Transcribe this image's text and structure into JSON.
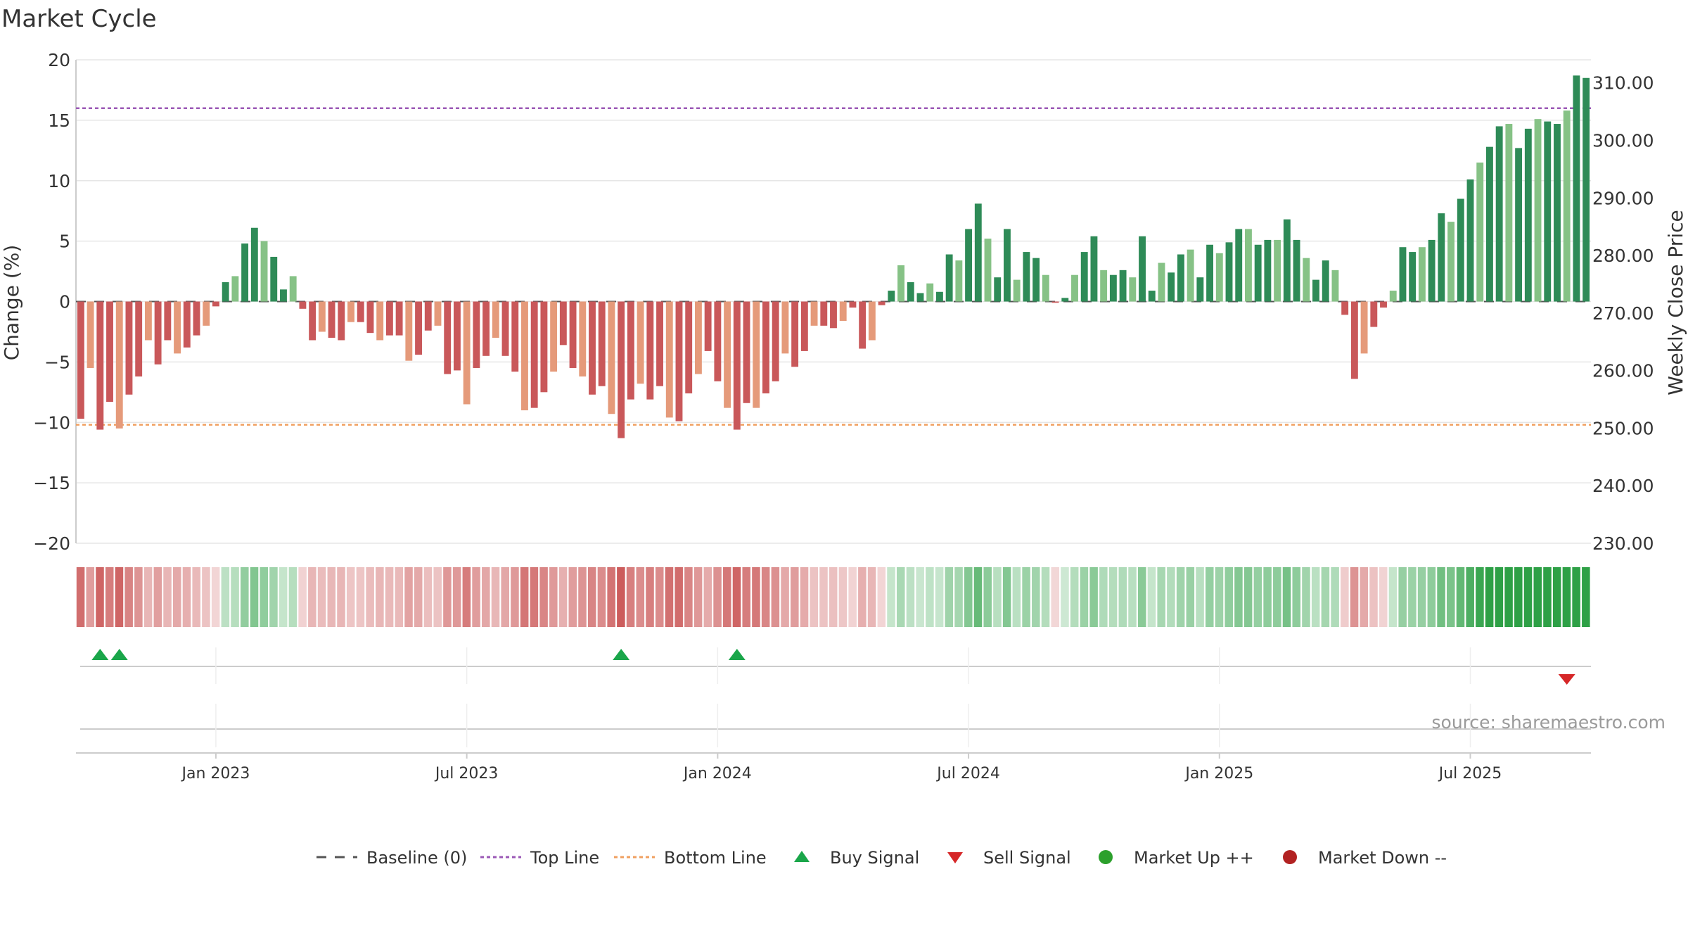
{
  "title": "Market Cycle",
  "source_text": "source: sharemaestro.com",
  "colors": {
    "up_dark": "#2e8b57",
    "up_light": "#86c286",
    "down_dark": "#c9585a",
    "down_light": "#e59a7a",
    "top_line": "#9b59b6",
    "bottom_line": "#f0a060",
    "baseline": "#555555",
    "buy": "#1aa64a",
    "sell": "#d62728",
    "market_up": "#2ca02c",
    "market_down": "#b22222"
  },
  "chart_data": {
    "type": "bar",
    "title": "Market Cycle",
    "y_left": {
      "label": "Change (%)",
      "lim": [
        -20,
        20
      ],
      "ticks": [
        "20",
        "15",
        "10",
        "5",
        "0",
        "−5",
        "−10",
        "−15",
        "−20"
      ]
    },
    "y_right": {
      "label": "Weekly Close Price",
      "lim": [
        230,
        314
      ],
      "ticks": [
        "310.00",
        "300.00",
        "290.00",
        "280.00",
        "270.00",
        "260.00",
        "250.00",
        "240.00",
        "230.00"
      ]
    },
    "x_ticks": [
      "Jan 2023",
      "Jul 2023",
      "Jan 2024",
      "Jul 2024",
      "Jan 2025",
      "Jul 2025"
    ],
    "x_tick_weeks": [
      14.5,
      40.5,
      66.5,
      92.5,
      118.5,
      144.5
    ],
    "top_line": 16,
    "bottom_line": -10.2,
    "values": [
      -9.7,
      -5.5,
      -10.6,
      -8.3,
      -10.5,
      -7.7,
      -6.2,
      -3.2,
      -5.2,
      -3.2,
      -4.3,
      -3.8,
      -2.8,
      -2.0,
      -0.4,
      1.6,
      2.1,
      4.8,
      6.1,
      5.0,
      3.7,
      1.0,
      2.1,
      -0.6,
      -3.2,
      -2.5,
      -3.0,
      -3.2,
      -1.7,
      -1.7,
      -2.6,
      -3.2,
      -2.8,
      -2.8,
      -4.9,
      -4.4,
      -2.4,
      -2.0,
      -6.0,
      -5.7,
      -8.5,
      -5.5,
      -4.5,
      -3.0,
      -4.5,
      -5.8,
      -9.0,
      -8.8,
      -7.5,
      -5.8,
      -3.6,
      -5.5,
      -6.2,
      -7.7,
      -7.0,
      -9.3,
      -11.3,
      -8.1,
      -6.8,
      -8.1,
      -7.0,
      -9.6,
      -9.9,
      -7.6,
      -6.0,
      -4.1,
      -6.6,
      -8.8,
      -10.6,
      -8.4,
      -8.8,
      -7.6,
      -6.6,
      -4.3,
      -5.4,
      -4.1,
      -2.0,
      -2.0,
      -2.2,
      -1.6,
      -0.5,
      -3.9,
      -3.2,
      -0.3,
      0.9,
      3.0,
      1.6,
      0.7,
      1.5,
      0.8,
      3.9,
      3.4,
      6.0,
      8.1,
      5.2,
      2.0,
      6.0,
      1.8,
      4.1,
      3.6,
      2.2,
      -0.1,
      0.3,
      2.2,
      4.1,
      5.4,
      2.6,
      2.2,
      2.6,
      2.0,
      5.4,
      0.9,
      3.2,
      2.4,
      3.9,
      4.3,
      2.0,
      4.7,
      4.0,
      4.9,
      6.0,
      6.0,
      4.7,
      5.1,
      5.1,
      6.8,
      5.1,
      3.6,
      1.8,
      3.4,
      2.6,
      -1.1,
      -6.4,
      -4.3,
      -2.1,
      -0.5,
      0.9,
      4.5,
      4.1,
      4.5,
      5.1,
      7.3,
      6.6,
      8.5,
      10.1,
      11.5,
      12.8,
      14.5,
      14.7,
      12.7,
      14.3,
      15.1,
      14.9,
      14.7,
      15.8,
      18.7,
      18.5
    ],
    "buy_signals_week": [
      2,
      4,
      56,
      68
    ],
    "sell_signals_week": [
      154
    ],
    "legend": [
      "Baseline (0)",
      "Top Line",
      "Bottom Line",
      "Buy Signal",
      "Sell Signal",
      "Market Up ++",
      "Market Down --"
    ],
    "legend_position": "bottom-center"
  }
}
